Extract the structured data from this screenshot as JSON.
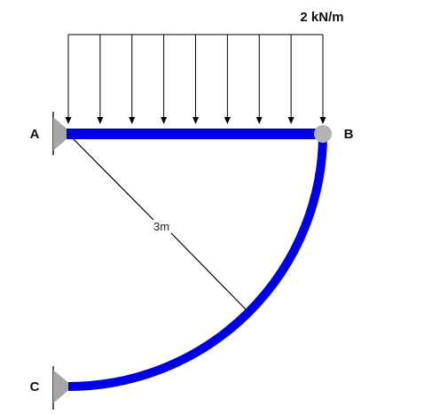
{
  "load": {
    "label": "2 kN/m",
    "arrow_count": 9
  },
  "nodes": {
    "a": "A",
    "b": "B",
    "c": "C"
  },
  "dimension": {
    "label": "3m"
  },
  "colors": {
    "member": "#0000e6",
    "support": "#a6a6a6",
    "line": "#000000",
    "hinge": "#b3b3b3"
  }
}
